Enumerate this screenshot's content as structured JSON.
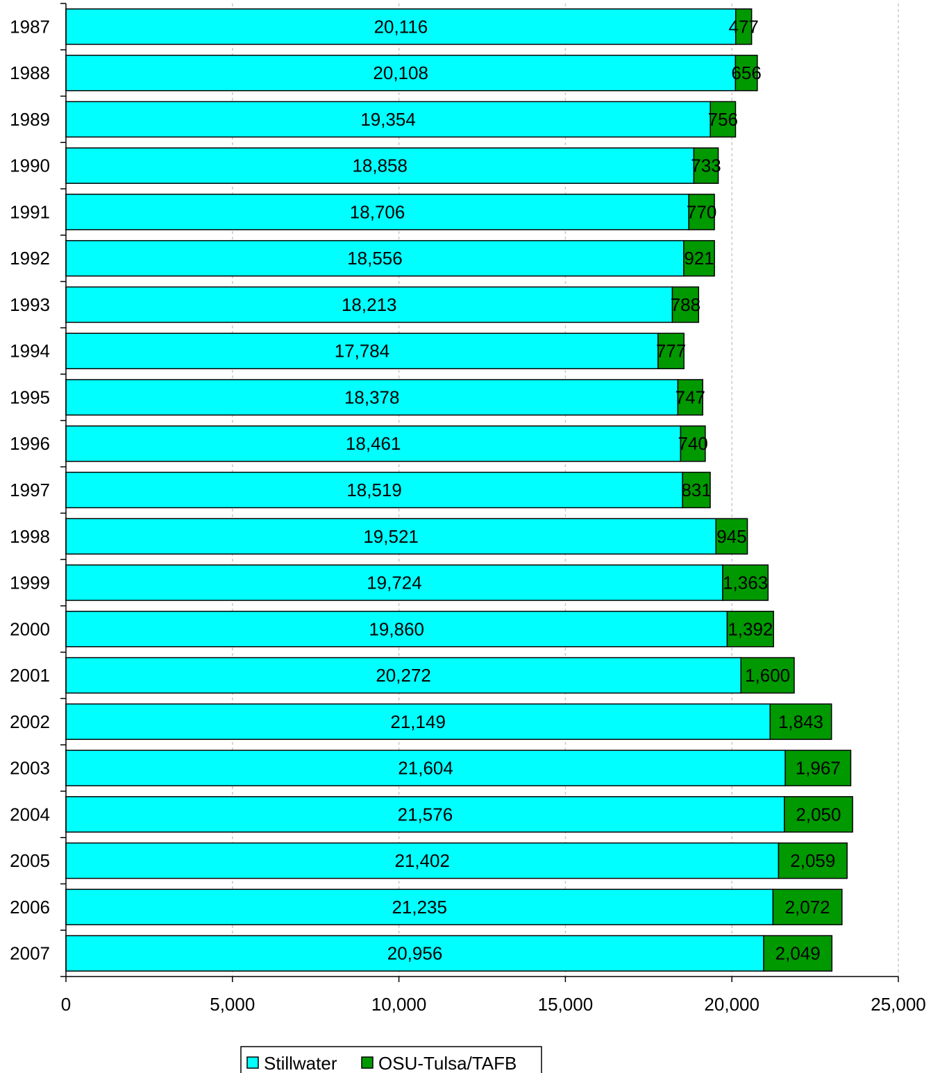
{
  "colors": {
    "stillwater": "#00ffff",
    "osu_tulsa": "#009900",
    "bar_stroke": "#000000",
    "grid": "#c8c8c8"
  },
  "chart_data": {
    "type": "bar",
    "orientation": "horizontal",
    "stacked": true,
    "title": "",
    "xlabel": "",
    "ylabel": "",
    "xlim": [
      0,
      25000
    ],
    "x_ticks": [
      0,
      5000,
      10000,
      15000,
      20000,
      25000
    ],
    "x_tick_labels": [
      "0",
      "5,000",
      "10,000",
      "15,000",
      "20,000",
      "25,000"
    ],
    "grid": "vertical dashed",
    "legend_position": "bottom",
    "categories": [
      "1987",
      "1988",
      "1989",
      "1990",
      "1991",
      "1992",
      "1993",
      "1994",
      "1995",
      "1996",
      "1997",
      "1998",
      "1999",
      "2000",
      "2001",
      "2002",
      "2003",
      "2004",
      "2005",
      "2006",
      "2007"
    ],
    "series": [
      {
        "name": "Stillwater",
        "values": [
          20116,
          20108,
          19354,
          18858,
          18706,
          18556,
          18213,
          17784,
          18378,
          18461,
          18519,
          19521,
          19724,
          19860,
          20272,
          21149,
          21604,
          21576,
          21402,
          21235,
          20956
        ],
        "labels": [
          "20,116",
          "20,108",
          "19,354",
          "18,858",
          "18,706",
          "18,556",
          "18,213",
          "17,784",
          "18,378",
          "18,461",
          "18,519",
          "19,521",
          "19,724",
          "19,860",
          "20,272",
          "21,149",
          "21,604",
          "21,576",
          "21,402",
          "21,235",
          "20,956"
        ]
      },
      {
        "name": "OSU-Tulsa/TAFB",
        "values": [
          477,
          656,
          756,
          733,
          770,
          921,
          788,
          777,
          747,
          740,
          831,
          945,
          1363,
          1392,
          1600,
          1843,
          1967,
          2050,
          2059,
          2072,
          2049
        ],
        "labels": [
          "477",
          "656",
          "756",
          "733",
          "770",
          "921",
          "788",
          "777",
          "747",
          "740",
          "831",
          "945",
          "1,363",
          "1,392",
          "1,600",
          "1,843",
          "1,967",
          "2,050",
          "2,059",
          "2,072",
          "2,049"
        ]
      }
    ]
  }
}
